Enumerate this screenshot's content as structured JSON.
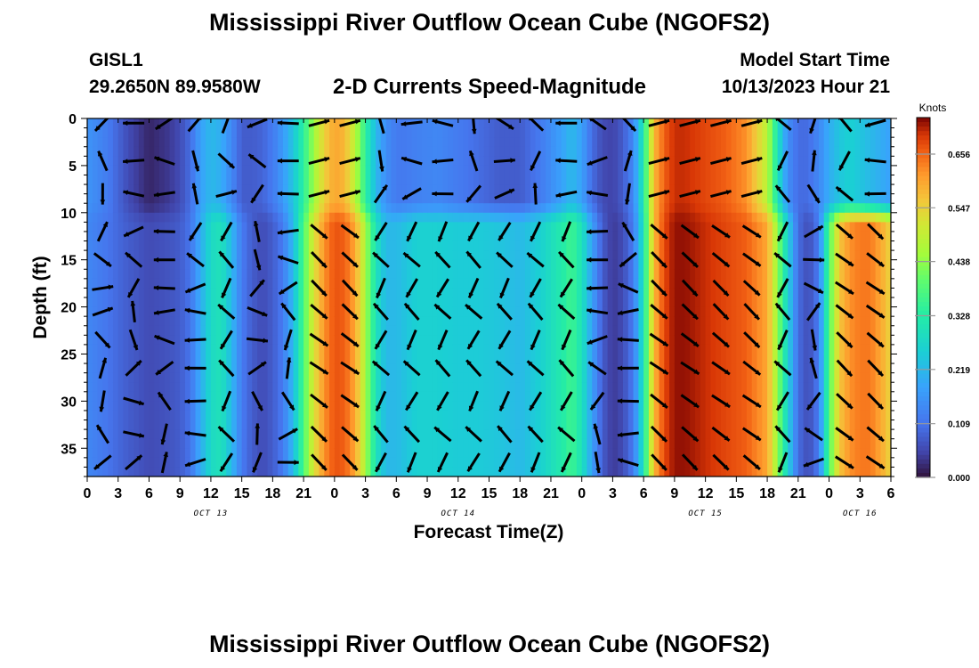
{
  "header": {
    "title": "Mississippi River Outflow Ocean Cube (NGOFS2)",
    "station": "GISL1",
    "coordinates": "29.2650N  89.9580W",
    "subtitle": "2-D Currents Speed-Magnitude",
    "model_start_label": "Model Start Time",
    "model_start_value": "10/13/2023 Hour 21"
  },
  "footer": {
    "title": "Mississippi River Outflow Ocean Cube (NGOFS2)"
  },
  "chart_data": {
    "type": "heatmap",
    "xlabel": "Forecast Time(Z)",
    "ylabel": "Depth (ft)",
    "x_hours_range": [
      0,
      78
    ],
    "x_ticks": [
      "0",
      "3",
      "6",
      "9",
      "12",
      "15",
      "18",
      "21",
      "0",
      "3",
      "6",
      "9",
      "12",
      "15",
      "18",
      "21",
      "0",
      "3",
      "6",
      "9",
      "12",
      "15",
      "18",
      "21",
      "0",
      "3",
      "6"
    ],
    "date_labels": [
      {
        "label": "OCT 13",
        "hour": 12
      },
      {
        "label": "OCT 14",
        "hour": 36
      },
      {
        "label": "OCT 15",
        "hour": 60
      },
      {
        "label": "OCT 16",
        "hour": 75
      }
    ],
    "ylim": [
      0,
      38
    ],
    "y_ticks": [
      0,
      5,
      10,
      15,
      20,
      25,
      30,
      35
    ],
    "colorbar": {
      "unit": "Knots",
      "min": 0.0,
      "max": 0.73,
      "tick_values": [
        0.0,
        0.109,
        0.219,
        0.328,
        0.438,
        0.547,
        0.656
      ],
      "tick_labels": [
        "0.000",
        "0.109",
        "0.219",
        "0.328",
        "0.438",
        "0.547",
        "0.656"
      ]
    },
    "speed_profile": {
      "hours": [
        0,
        2,
        4,
        6,
        8,
        9,
        10,
        11,
        12,
        13,
        14,
        15,
        16,
        17,
        18,
        19,
        20,
        21,
        22,
        23,
        24,
        25,
        26,
        27,
        28,
        29,
        30,
        31,
        32,
        34,
        36,
        38,
        40,
        42,
        44,
        46,
        47,
        48,
        49,
        50,
        51,
        52,
        53,
        54,
        55,
        56,
        57,
        58,
        60,
        62,
        64,
        66,
        67,
        68,
        69,
        70,
        71,
        72,
        73,
        74,
        75,
        76,
        77,
        78
      ],
      "surface": [
        0.16,
        0.12,
        0.06,
        0.02,
        0.04,
        0.06,
        0.1,
        0.18,
        0.22,
        0.2,
        0.14,
        0.08,
        0.08,
        0.09,
        0.12,
        0.17,
        0.24,
        0.34,
        0.45,
        0.55,
        0.6,
        0.58,
        0.48,
        0.34,
        0.22,
        0.15,
        0.12,
        0.12,
        0.13,
        0.14,
        0.12,
        0.1,
        0.08,
        0.08,
        0.12,
        0.18,
        0.22,
        0.18,
        0.1,
        0.06,
        0.05,
        0.08,
        0.14,
        0.32,
        0.58,
        0.66,
        0.7,
        0.7,
        0.68,
        0.66,
        0.62,
        0.48,
        0.3,
        0.15,
        0.1,
        0.1,
        0.14,
        0.2,
        0.24,
        0.26,
        0.24,
        0.22,
        0.2,
        0.18
      ],
      "deep": [
        0.14,
        0.11,
        0.08,
        0.06,
        0.07,
        0.08,
        0.11,
        0.2,
        0.28,
        0.3,
        0.22,
        0.12,
        0.08,
        0.06,
        0.08,
        0.12,
        0.22,
        0.38,
        0.52,
        0.62,
        0.67,
        0.66,
        0.6,
        0.46,
        0.3,
        0.22,
        0.22,
        0.24,
        0.26,
        0.26,
        0.25,
        0.25,
        0.24,
        0.22,
        0.26,
        0.32,
        0.36,
        0.3,
        0.18,
        0.08,
        0.04,
        0.06,
        0.12,
        0.3,
        0.58,
        0.68,
        0.72,
        0.72,
        0.7,
        0.68,
        0.66,
        0.6,
        0.44,
        0.26,
        0.1,
        0.06,
        0.12,
        0.38,
        0.56,
        0.62,
        0.64,
        0.64,
        0.6,
        0.54
      ]
    },
    "arrow_spacing_hours": 3,
    "arrow_depths_ft": [
      0.5,
      4.5,
      8,
      12,
      15,
      18,
      20.5,
      23.5,
      26.5,
      30,
      33.5,
      36.5
    ]
  }
}
